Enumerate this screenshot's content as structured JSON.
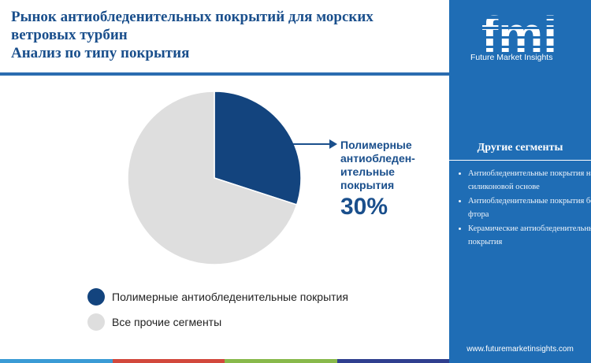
{
  "title": {
    "lines": [
      "Рынок антиобледенительных покрытий для морских",
      "ветровых турбин",
      "Анализ по типу покрытия"
    ]
  },
  "chart_data": {
    "type": "pie",
    "slices": [
      {
        "name": "Полимерные антиобледенительные покрытия",
        "value": 30,
        "color": "#13447e"
      },
      {
        "name": "Все прочие сегменты",
        "value": 70,
        "color": "#dedede"
      }
    ],
    "callout": {
      "label": "Полимерные\nантиобледен-\nительные\nпокрытия",
      "value": "30%"
    },
    "legend_position": "bottom-left"
  },
  "legend": [
    {
      "label": "Полимерные антиобледенительные покрытия",
      "color": "#13447e"
    },
    {
      "label": "Все прочие сегменты",
      "color": "#dedede"
    }
  ],
  "sidebar": {
    "logo_letters": "fmi",
    "logo_text": "Future Market Insights",
    "heading": "Другие сегменты",
    "items": [
      "Антиобледенительные покрытия на силиконовой основе",
      "Антиобледенительные покрытия без фтора",
      "Керамические антиобледенительные покрытия"
    ],
    "website": "www.futuremarketinsights.com"
  },
  "colors": {
    "accent": "#1f6db5",
    "title": "#1a4f8c",
    "bottom_bar": [
      "#3a9bd5",
      "#d2483c",
      "#88b94b",
      "#2f3f8f"
    ]
  }
}
